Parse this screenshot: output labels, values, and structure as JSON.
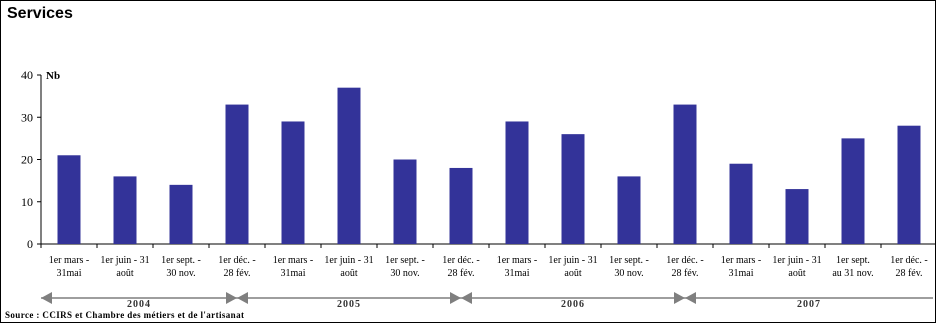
{
  "chart_data": {
    "type": "bar",
    "title": "Services",
    "ylabel": "Nb",
    "ylim": [
      0,
      40
    ],
    "yticks": [
      0,
      10,
      20,
      30,
      40
    ],
    "bar_color": "#333399",
    "categories": [
      [
        "1er mars -",
        "31mai"
      ],
      [
        "1er juin - 31",
        "août"
      ],
      [
        "1er sept. -",
        "30 nov."
      ],
      [
        "1er déc. -",
        "28 fév."
      ],
      [
        "1er mars -",
        "31mai"
      ],
      [
        "1er juin - 31",
        "août"
      ],
      [
        "1er sept. -",
        "30 nov."
      ],
      [
        "1er déc. -",
        "28 fév."
      ],
      [
        "1er mars -",
        "31mai"
      ],
      [
        "1er juin - 31",
        "août"
      ],
      [
        "1er sept. -",
        "30 nov."
      ],
      [
        "1er déc. -",
        "28 fév."
      ],
      [
        "1er mars -",
        "31mai"
      ],
      [
        "1er juin - 31",
        "août"
      ],
      [
        "1er sept.",
        "au 31 nov."
      ],
      [
        "1er déc. -",
        "28 fév."
      ]
    ],
    "values": [
      21,
      16,
      14,
      33,
      29,
      37,
      20,
      18,
      29,
      26,
      16,
      33,
      19,
      13,
      25,
      28
    ],
    "years": [
      {
        "label": "2004",
        "start": 0,
        "end": 3
      },
      {
        "label": "2005",
        "start": 4,
        "end": 7
      },
      {
        "label": "2006",
        "start": 8,
        "end": 11
      },
      {
        "label": "2007",
        "start": 12,
        "end": 15
      }
    ],
    "grid": false
  },
  "source": "Source : CCIRS et Chambre des métiers et de l'artisanat"
}
